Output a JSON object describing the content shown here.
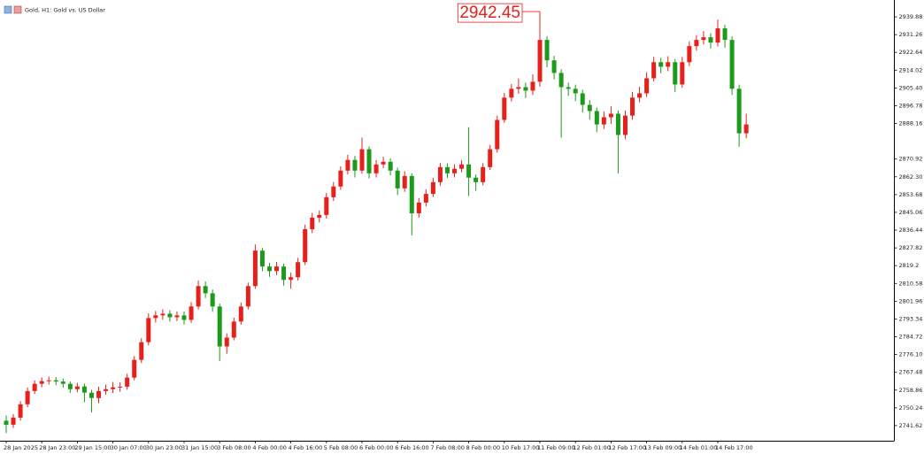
{
  "chart_data": {
    "type": "candlestick",
    "title": "Gold, H1:  Gold vs. US Dollar",
    "up_color": "#e8201c",
    "down_color": "#1c9a1c",
    "ylim": [
      2734.72,
      2945.92
    ],
    "yticks": [
      2741.62,
      2750.24,
      2758.86,
      2767.48,
      {
        "value": 2776.1,
        "label": "2776.10"
      },
      2784.72,
      2793.34,
      2801.96,
      2810.58,
      2819.2,
      2827.82,
      2836.44,
      2845.06,
      2853.68,
      {
        "value": 2862.3,
        "label": "2862.30"
      },
      2870.92,
      2888.16,
      2896.78,
      {
        "value": 2905.4,
        "label": "2905.40"
      },
      2914.02,
      2922.64,
      2931.26,
      2939.88
    ],
    "categories": [
      "28 Jan 2025",
      null,
      null,
      null,
      null,
      "28 Jan 23:00",
      null,
      null,
      null,
      null,
      "29 Jan 15:00",
      null,
      null,
      null,
      null,
      "30 Jan 07:00",
      null,
      null,
      null,
      null,
      "30 Jan 23:00",
      null,
      null,
      null,
      null,
      "31 Jan 15:00",
      null,
      null,
      null,
      null,
      "3 Feb 08:00",
      null,
      null,
      null,
      null,
      "4 Feb 00:00",
      null,
      null,
      null,
      null,
      "4 Feb 16:00",
      null,
      null,
      null,
      null,
      "5 Feb 08:00",
      null,
      null,
      null,
      null,
      "6 Feb 00:00",
      null,
      null,
      null,
      null,
      "6 Feb 16:00",
      null,
      null,
      null,
      null,
      "7 Feb 08:00",
      null,
      null,
      null,
      null,
      "8 Feb 00:00",
      null,
      null,
      null,
      null,
      "10 Feb 17:00",
      null,
      null,
      null,
      null,
      "11 Feb 09:00",
      null,
      null,
      null,
      null,
      "12 Feb 01:00",
      null,
      null,
      null,
      null,
      "12 Feb 17:00",
      null,
      null,
      null,
      null,
      "13 Feb 09:00",
      null,
      null,
      null,
      null,
      "14 Feb 01:00",
      null,
      null,
      null,
      null,
      "14 Feb 17:00",
      null,
      null,
      null,
      null
    ],
    "open": [
      2744.0,
      2742.05,
      2745.5,
      2751.96,
      2758.4,
      2761.9,
      2763.2,
      2763.6,
      2763.0,
      2761.9,
      2759.3,
      2760.6,
      2757.6,
      2755.0,
      2758.4,
      2759.3,
      2760.2,
      2760.5,
      2764.9,
      2773.5,
      2782.1,
      2793.8,
      2795.1,
      2795.9,
      2794.2,
      2795.1,
      2792.9,
      2799.4,
      2809.3,
      2805.8,
      2799.4,
      2780.0,
      2784.3,
      2792.1,
      2799.4,
      2809.3,
      2826.5,
      2818.8,
      2816.6,
      2818.8,
      2812.3,
      2813.6,
      2820.9,
      2836.9,
      2842.5,
      2843.8,
      2852.4,
      2857.6,
      2865.3,
      2870.5,
      2865.3,
      2875.7,
      2864.0,
      2868.3,
      2869.6,
      2865.3,
      2856.7,
      2862.7,
      2844.6,
      2849.8,
      2854.0,
      2859.7,
      2867.0,
      2864.0,
      2866.2,
      2868.3,
      2861.9,
      2859.7,
      2867.0,
      2875.7,
      2889.9,
      2900.7,
      2905.0,
      2905.8,
      2904.1,
      2908.4,
      2928.7,
      2918.8,
      2912.7,
      2905.8,
      2905.0,
      2902.8,
      2897.2,
      2894.2,
      2887.7,
      2891.2,
      2892.9,
      2882.6,
      2892.0,
      2900.7,
      2902.8,
      2910.1,
      2917.9,
      2915.7,
      2917.9,
      2907.1,
      2917.9,
      2925.7,
      2928.7,
      2930.0,
      2927.4,
      2934.3,
      2928.7,
      2905.0,
      2883.4
    ],
    "high": [
      2746.5,
      2747.2,
      2753.5,
      2760.1,
      2763.5,
      2765.0,
      2765.4,
      2765.2,
      2764.5,
      2763.0,
      2762.4,
      2762.0,
      2759.0,
      2760.5,
      2761.5,
      2762.8,
      2762.6,
      2766.8,
      2775.4,
      2784.0,
      2796.0,
      2797.3,
      2798.0,
      2797.6,
      2797.0,
      2797.0,
      2801.5,
      2812.0,
      2811.5,
      2807.6,
      2800.8,
      2786.4,
      2794.0,
      2801.3,
      2811.0,
      2829.5,
      2827.8,
      2820.6,
      2821.0,
      2820.2,
      2815.8,
      2823.0,
      2839.0,
      2844.8,
      2846.0,
      2854.5,
      2859.8,
      2867.4,
      2873.0,
      2872.4,
      2881.3,
      2877.0,
      2870.4,
      2872.0,
      2871.3,
      2866.8,
      2865.0,
      2864.0,
      2852.0,
      2856.3,
      2861.8,
      2869.0,
      2868.8,
      2868.4,
      2870.5,
      2886.4,
      2863.5,
      2869.0,
      2877.8,
      2892.0,
      2903.0,
      2907.3,
      2910.0,
      2908.0,
      2912.0,
      2942.45,
      2930.5,
      2921.0,
      2914.5,
      2908.0,
      2907.0,
      2904.5,
      2899.5,
      2896.0,
      2894.0,
      2896.5,
      2894.5,
      2894.5,
      2903.5,
      2906.0,
      2913.0,
      2920.5,
      2920.0,
      2920.8,
      2919.5,
      2920.5,
      2928.0,
      2931.0,
      2933.0,
      2932.0,
      2938.6,
      2936.0,
      2930.5,
      2907.0,
      2892.9
    ],
    "low": [
      2738.0,
      2740.5,
      2744.0,
      2750.5,
      2757.0,
      2760.2,
      2761.5,
      2761.2,
      2760.0,
      2757.5,
      2757.8,
      2753.0,
      2748.0,
      2752.5,
      2756.6,
      2757.4,
      2758.0,
      2759.0,
      2763.6,
      2772.0,
      2780.5,
      2791.6,
      2793.0,
      2792.0,
      2792.3,
      2790.6,
      2791.5,
      2798.0,
      2803.5,
      2796.8,
      2773.0,
      2776.5,
      2783.0,
      2790.6,
      2798.0,
      2808.0,
      2816.5,
      2813.8,
      2814.6,
      2809.5,
      2808.0,
      2812.0,
      2819.5,
      2835.0,
      2840.2,
      2842.0,
      2850.6,
      2856.0,
      2863.5,
      2862.0,
      2863.8,
      2861.5,
      2862.0,
      2866.5,
      2863.0,
      2853.5,
      2855.0,
      2833.9,
      2842.5,
      2848.0,
      2852.5,
      2858.0,
      2861.8,
      2862.0,
      2864.5,
      2853.0,
      2855.5,
      2858.2,
      2865.6,
      2874.0,
      2888.5,
      2898.8,
      2902.6,
      2900.5,
      2902.0,
      2906.0,
      2915.5,
      2909.5,
      2881.3,
      2901.5,
      2899.0,
      2893.5,
      2890.0,
      2884.0,
      2885.5,
      2888.0,
      2864.0,
      2880.5,
      2890.0,
      2898.5,
      2901.0,
      2908.5,
      2912.5,
      2913.5,
      2903.5,
      2905.5,
      2916.0,
      2923.5,
      2926.5,
      2924.5,
      2925.5,
      2925.0,
      2902.0,
      2876.9,
      2881.0
    ],
    "close": [
      2742.05,
      2745.5,
      2751.96,
      2758.4,
      2761.9,
      2763.2,
      2763.6,
      2763.0,
      2761.9,
      2759.3,
      2760.6,
      2757.6,
      2755.0,
      2758.4,
      2759.3,
      2760.2,
      2760.5,
      2764.9,
      2773.5,
      2782.1,
      2793.8,
      2795.1,
      2795.9,
      2794.2,
      2795.1,
      2792.9,
      2799.4,
      2809.3,
      2805.8,
      2799.4,
      2780.0,
      2784.3,
      2792.1,
      2799.4,
      2809.3,
      2826.5,
      2818.8,
      2816.6,
      2818.8,
      2812.3,
      2813.6,
      2820.9,
      2836.9,
      2842.5,
      2843.8,
      2852.4,
      2857.6,
      2865.3,
      2870.5,
      2865.3,
      2875.7,
      2864.0,
      2868.3,
      2869.6,
      2865.3,
      2856.7,
      2862.7,
      2844.6,
      2849.8,
      2854.0,
      2859.7,
      2867.0,
      2864.0,
      2866.2,
      2868.3,
      2861.9,
      2859.7,
      2867.0,
      2875.7,
      2889.9,
      2900.7,
      2905.0,
      2905.8,
      2904.1,
      2908.4,
      2928.7,
      2918.8,
      2912.7,
      2905.8,
      2905.0,
      2902.8,
      2897.2,
      2894.2,
      2887.7,
      2891.2,
      2892.9,
      2882.6,
      2892.0,
      2900.7,
      2902.8,
      2910.1,
      2917.9,
      2915.7,
      2917.9,
      2907.1,
      2917.9,
      2925.7,
      2928.7,
      2930.0,
      2927.4,
      2934.3,
      2928.7,
      2905.0,
      2883.4,
      2887.7
    ]
  }
}
